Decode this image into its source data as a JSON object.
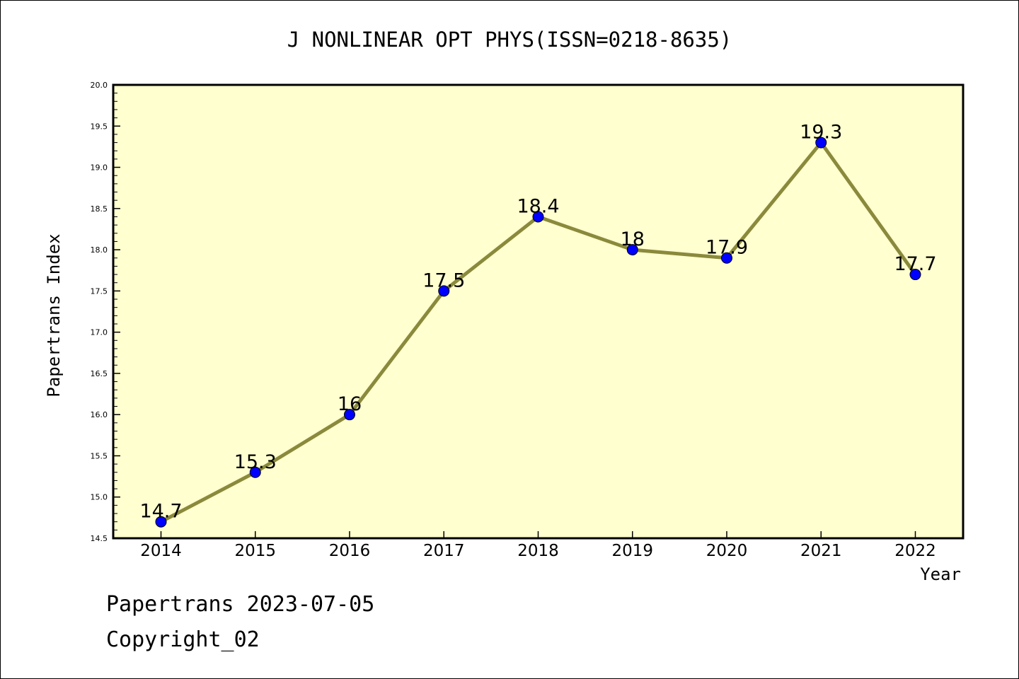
{
  "chart_data": {
    "type": "line",
    "title": "J NONLINEAR OPT PHYS(ISSN=0218-8635)",
    "xlabel": "Year",
    "ylabel": "Papertrans Index",
    "categories": [
      "2014",
      "2015",
      "2016",
      "2017",
      "2018",
      "2019",
      "2020",
      "2021",
      "2022"
    ],
    "values": [
      14.7,
      15.3,
      16,
      17.5,
      18.4,
      18,
      17.9,
      19.3,
      17.7
    ],
    "data_labels": [
      "14.7",
      "15.3",
      "16",
      "17.5",
      "18.4",
      "18",
      "17.9",
      "19.3",
      "17.7"
    ],
    "ylim": [
      14.5,
      20.0
    ],
    "yticks": [
      "14.5",
      "15.0",
      "15.5",
      "16.0",
      "16.5",
      "17.0",
      "17.5",
      "18.0",
      "18.5",
      "19.0",
      "19.5",
      "20.0"
    ],
    "grid": false,
    "legend": "none",
    "colors": {
      "plot_background": "#ffffd0",
      "line": "#8b8a3c",
      "marker": "#0000ff"
    }
  },
  "footer": {
    "line1": "Papertrans 2023-07-05",
    "line2": "Copyright_02"
  }
}
